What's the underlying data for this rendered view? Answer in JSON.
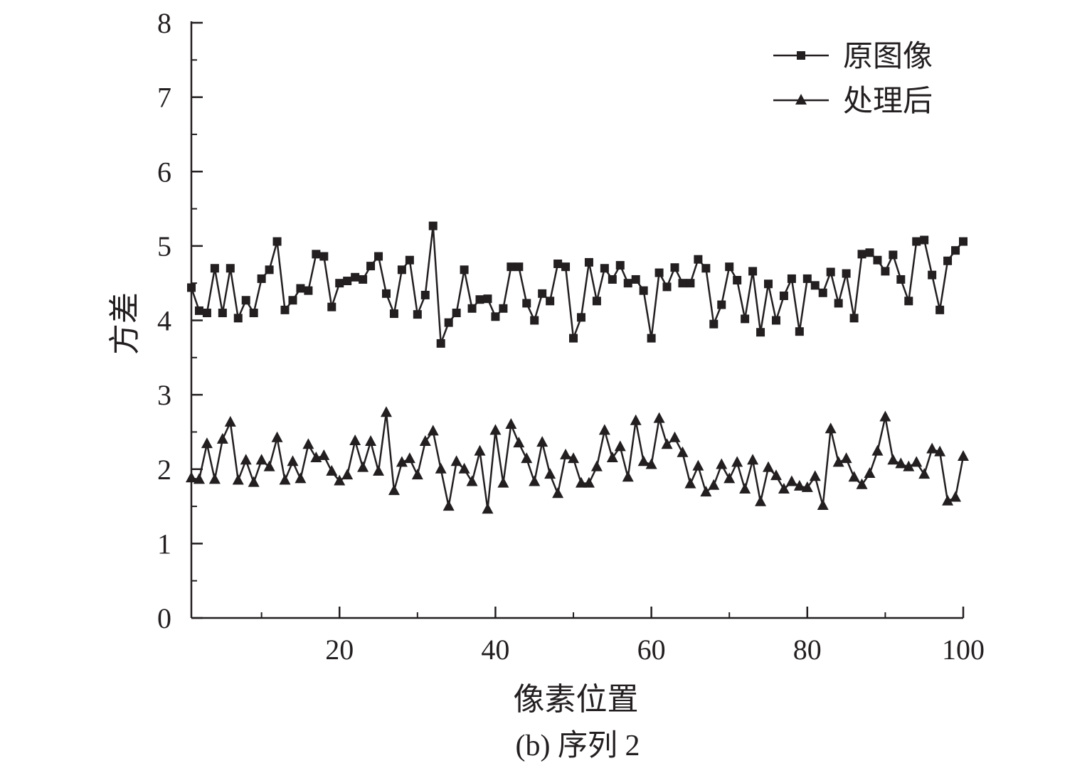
{
  "chart_data": {
    "type": "line",
    "xlabel": "像素位置",
    "ylabel": "方差",
    "caption": "(b) 序列 2",
    "xlim": [
      1,
      100
    ],
    "ylim": [
      0,
      8
    ],
    "xticks": [
      20,
      40,
      60,
      80,
      100
    ],
    "yticks": [
      0,
      1,
      2,
      3,
      4,
      5,
      6,
      7,
      8
    ],
    "legend_position": "top-right",
    "line_color": "#231f20",
    "x": [
      1,
      2,
      3,
      4,
      5,
      6,
      7,
      8,
      9,
      10,
      11,
      12,
      13,
      14,
      15,
      16,
      17,
      18,
      19,
      20,
      21,
      22,
      23,
      24,
      25,
      26,
      27,
      28,
      29,
      30,
      31,
      32,
      33,
      34,
      35,
      36,
      37,
      38,
      39,
      40,
      41,
      42,
      43,
      44,
      45,
      46,
      47,
      48,
      49,
      50,
      51,
      52,
      53,
      54,
      55,
      56,
      57,
      58,
      59,
      60,
      61,
      62,
      63,
      64,
      65,
      66,
      67,
      68,
      69,
      70,
      71,
      72,
      73,
      74,
      75,
      76,
      77,
      78,
      79,
      80,
      81,
      82,
      83,
      84,
      85,
      86,
      87,
      88,
      89,
      90,
      91,
      92,
      93,
      94,
      95,
      96,
      97,
      98,
      99,
      100
    ],
    "series": [
      {
        "name": "原图像",
        "marker": "square",
        "values": [
          4.44,
          4.13,
          4.1,
          4.7,
          4.1,
          4.7,
          4.03,
          4.27,
          4.1,
          4.56,
          4.68,
          5.06,
          4.14,
          4.27,
          4.43,
          4.4,
          4.89,
          4.86,
          4.18,
          4.5,
          4.53,
          4.58,
          4.55,
          4.73,
          4.86,
          4.36,
          4.09,
          4.68,
          4.81,
          4.08,
          4.34,
          5.27,
          3.69,
          3.97,
          4.1,
          4.68,
          4.16,
          4.28,
          4.29,
          4.05,
          4.16,
          4.72,
          4.72,
          4.23,
          4.0,
          4.36,
          4.26,
          4.76,
          4.72,
          3.76,
          4.04,
          4.78,
          4.26,
          4.7,
          4.55,
          4.74,
          4.5,
          4.55,
          4.4,
          3.76,
          4.64,
          4.45,
          4.71,
          4.5,
          4.5,
          4.82,
          4.7,
          3.95,
          4.21,
          4.72,
          4.54,
          4.02,
          4.66,
          3.84,
          4.49,
          4.0,
          4.33,
          4.56,
          3.85,
          4.56,
          4.47,
          4.37,
          4.65,
          4.23,
          4.63,
          4.03,
          4.89,
          4.91,
          4.81,
          4.66,
          4.88,
          4.55,
          4.26,
          5.06,
          5.08,
          4.61,
          4.14,
          4.8,
          4.94,
          5.06
        ]
      },
      {
        "name": "处理后",
        "marker": "triangle",
        "values": [
          1.88,
          1.86,
          2.34,
          1.86,
          2.4,
          2.63,
          1.85,
          2.12,
          1.82,
          2.12,
          2.03,
          2.42,
          1.85,
          2.1,
          1.87,
          2.33,
          2.15,
          2.18,
          1.97,
          1.84,
          1.92,
          2.38,
          2.02,
          2.37,
          1.97,
          2.76,
          1.71,
          2.09,
          2.14,
          1.92,
          2.37,
          2.51,
          2.0,
          1.5,
          2.1,
          2.0,
          1.83,
          2.24,
          1.46,
          2.52,
          1.81,
          2.6,
          2.35,
          2.14,
          1.83,
          2.36,
          1.93,
          1.67,
          2.19,
          2.14,
          1.81,
          1.81,
          2.03,
          2.52,
          2.15,
          2.3,
          1.89,
          2.65,
          2.1,
          2.06,
          2.68,
          2.33,
          2.42,
          2.22,
          1.8,
          2.04,
          1.69,
          1.78,
          2.06,
          1.87,
          2.09,
          1.73,
          2.12,
          1.56,
          2.02,
          1.91,
          1.73,
          1.83,
          1.77,
          1.75,
          1.9,
          1.51,
          2.54,
          2.09,
          2.14,
          1.89,
          1.79,
          1.94,
          2.24,
          2.7,
          2.12,
          2.07,
          2.03,
          2.09,
          1.93,
          2.27,
          2.23,
          1.57,
          1.62,
          2.17
        ]
      }
    ]
  }
}
